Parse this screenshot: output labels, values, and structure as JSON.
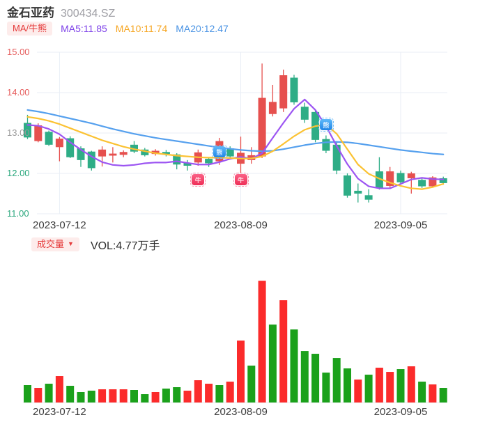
{
  "header": {
    "stock_name": "金石亚药",
    "stock_code": "300434.SZ"
  },
  "indicators": {
    "selector_label": "MA/牛熊",
    "ma5": "MA5:11.85",
    "ma10": "MA10:11.74",
    "ma20": "MA20:12.47"
  },
  "volume_panel": {
    "selector_label": "成交量",
    "dropdown_arrow": "▼",
    "readout": "VOL:4.77万手"
  },
  "colors": {
    "candle_up": "#e6504e",
    "candle_down": "#2ead86",
    "vol_up": "#fb2b2b",
    "vol_down": "#1ba11b",
    "ma5": "#9c55f2",
    "ma10": "#fbc233",
    "ma20": "#55a0ee",
    "grid": "#e9eef6",
    "axis_line": "#e7eaef",
    "tick_red": "#e65c5c",
    "tick_green": "#2aa77d",
    "tick_gray": "#9a9a9a"
  },
  "chart_data": {
    "type": "candlestick+volume",
    "days": 40,
    "ylim": [
      11,
      15
    ],
    "grid": true,
    "y_ticks": [
      {
        "label": "15.00",
        "value": 15,
        "color": "#e65c5c"
      },
      {
        "label": "14.00",
        "value": 14,
        "color": "#e65c5c"
      },
      {
        "label": "13.00",
        "value": 13,
        "color": "#9a9a9a"
      },
      {
        "label": "12.00",
        "value": 12,
        "color": "#2aa77d"
      },
      {
        "label": "11.00",
        "value": 11,
        "color": "#2aa77d"
      }
    ],
    "x_ticks": [
      {
        "label": "2023-07-12",
        "day": 3
      },
      {
        "label": "2023-08-09",
        "day": 20
      },
      {
        "label": "2023-09-05",
        "day": 35
      }
    ],
    "candles": [
      [
        13.25,
        13.45,
        12.85,
        12.89
      ],
      [
        12.8,
        13.24,
        12.77,
        13.19
      ],
      [
        13.03,
        13.06,
        12.68,
        12.71
      ],
      [
        12.65,
        12.9,
        12.3,
        12.86
      ],
      [
        12.87,
        12.92,
        12.38,
        12.4
      ],
      [
        12.62,
        12.67,
        12.16,
        12.33
      ],
      [
        12.54,
        12.56,
        12.07,
        12.13
      ],
      [
        12.42,
        12.67,
        12.17,
        12.59
      ],
      [
        12.44,
        12.65,
        12.27,
        12.49
      ],
      [
        12.46,
        12.57,
        12.4,
        12.53
      ],
      [
        12.71,
        12.8,
        12.5,
        12.54
      ],
      [
        12.59,
        12.63,
        12.42,
        12.45
      ],
      [
        12.48,
        12.6,
        12.44,
        12.56
      ],
      [
        12.53,
        12.58,
        12.42,
        12.48
      ],
      [
        12.47,
        12.5,
        12.1,
        12.22
      ],
      [
        12.26,
        12.33,
        12.07,
        12.19
      ],
      [
        12.27,
        12.59,
        12.19,
        12.52
      ],
      [
        12.36,
        12.4,
        12.16,
        12.25
      ],
      [
        12.3,
        12.88,
        12.21,
        12.8
      ],
      [
        12.62,
        12.67,
        12.38,
        12.42
      ],
      [
        12.24,
        12.91,
        12.01,
        12.51
      ],
      [
        12.33,
        12.65,
        12.24,
        12.45
      ],
      [
        12.42,
        14.72,
        12.38,
        13.87
      ],
      [
        13.47,
        14.19,
        13.41,
        13.77
      ],
      [
        13.61,
        14.57,
        13.52,
        14.43
      ],
      [
        14.37,
        14.44,
        13.7,
        13.76
      ],
      [
        13.65,
        13.75,
        13.25,
        13.33
      ],
      [
        13.52,
        13.58,
        12.77,
        12.83
      ],
      [
        12.85,
        12.94,
        12.5,
        12.56
      ],
      [
        12.71,
        12.77,
        11.98,
        12.07
      ],
      [
        11.95,
        12.0,
        11.4,
        11.45
      ],
      [
        11.57,
        11.75,
        11.28,
        11.5
      ],
      [
        11.46,
        11.61,
        11.28,
        11.35
      ],
      [
        12.05,
        12.4,
        11.6,
        11.63
      ],
      [
        11.69,
        12.16,
        11.63,
        12.05
      ],
      [
        12.01,
        12.07,
        11.74,
        11.78
      ],
      [
        11.88,
        12.04,
        11.5,
        12.0
      ],
      [
        11.84,
        11.88,
        11.64,
        11.68
      ],
      [
        11.68,
        11.93,
        11.65,
        11.9
      ],
      [
        11.88,
        11.92,
        11.72,
        11.76
      ]
    ],
    "volumes": [
      5.68,
      4.77,
      6.13,
      8.63,
      5.45,
      3.41,
      3.86,
      4.31,
      4.31,
      4.31,
      4.09,
      2.72,
      3.41,
      4.54,
      5.0,
      3.86,
      7.27,
      6.13,
      5.68,
      6.81,
      20.21,
      12.04,
      39.74,
      25.43,
      33.38,
      23.84,
      16.8,
      15.9,
      9.76,
      14.53,
      11.13,
      7.49,
      9.08,
      11.36,
      9.99,
      10.9,
      11.81,
      6.81,
      5.9,
      4.77
    ],
    "volume_unit": "万手",
    "volume_dir": [
      "d",
      "u",
      "d",
      "u",
      "d",
      "d",
      "d",
      "u",
      "u",
      "u",
      "d",
      "d",
      "u",
      "d",
      "d",
      "u",
      "u",
      "u",
      "d",
      "u",
      "u",
      "d",
      "u",
      "d",
      "u",
      "d",
      "d",
      "d",
      "d",
      "d",
      "d",
      "u",
      "d",
      "u",
      "u",
      "d",
      "u",
      "d",
      "u",
      "d"
    ],
    "ma5": [
      13.2,
      13.18,
      13.1,
      12.97,
      12.77,
      12.59,
      12.42,
      12.28,
      12.21,
      12.19,
      12.21,
      12.25,
      12.27,
      12.27,
      12.3,
      12.26,
      12.22,
      12.22,
      12.28,
      12.36,
      12.41,
      12.36,
      12.5,
      12.88,
      13.25,
      13.6,
      13.83,
      13.57,
      13.17,
      12.68,
      12.23,
      11.87,
      11.68,
      11.63,
      11.63,
      11.74,
      11.85,
      11.89,
      11.86,
      11.85
    ],
    "ma10": [
      13.4,
      13.36,
      13.3,
      13.22,
      13.12,
      13.02,
      12.92,
      12.82,
      12.74,
      12.66,
      12.6,
      12.55,
      12.5,
      12.47,
      12.44,
      12.42,
      12.4,
      12.39,
      12.39,
      12.38,
      12.37,
      12.37,
      12.42,
      12.55,
      12.73,
      12.92,
      13.08,
      13.17,
      13.21,
      12.98,
      12.6,
      12.22,
      11.99,
      11.87,
      11.77,
      11.69,
      11.63,
      11.61,
      11.66,
      11.74
    ],
    "ma20": [
      13.57,
      13.53,
      13.48,
      13.42,
      13.36,
      13.3,
      13.24,
      13.17,
      13.1,
      13.04,
      12.98,
      12.93,
      12.88,
      12.84,
      12.8,
      12.76,
      12.72,
      12.68,
      12.64,
      12.61,
      12.58,
      12.56,
      12.55,
      12.56,
      12.6,
      12.65,
      12.7,
      12.74,
      12.77,
      12.78,
      12.77,
      12.74,
      12.7,
      12.66,
      12.62,
      12.58,
      12.55,
      12.52,
      12.49,
      12.47
    ],
    "markers": [
      {
        "type": "bull",
        "glyph": "牛",
        "day": 16,
        "price": 11.84
      },
      {
        "type": "bear",
        "glyph": "熊",
        "day": 18,
        "price": 12.53
      },
      {
        "type": "bull",
        "glyph": "牛",
        "day": 20,
        "price": 11.84
      },
      {
        "type": "bear",
        "glyph": "熊",
        "day": 28,
        "price": 13.2
      }
    ]
  }
}
